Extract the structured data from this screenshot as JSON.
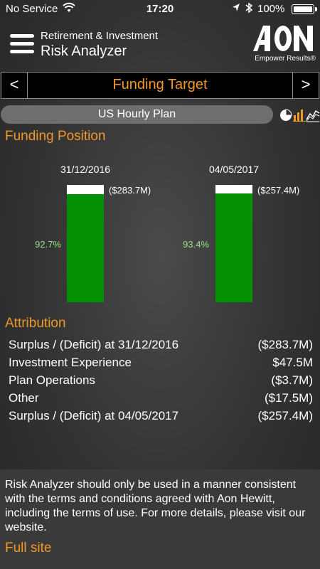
{
  "status_bar": {
    "carrier": "No Service",
    "time": "17:20",
    "battery": "100%"
  },
  "header": {
    "subtitle": "Retirement & Investment",
    "title": "Risk Analyzer",
    "logo_text": "AON",
    "logo_tagline": "Empower Results®"
  },
  "nav": {
    "prev": "<",
    "title": "Funding Target",
    "next": ">"
  },
  "plan": {
    "name": "US Hourly Plan",
    "view_icons": [
      "pie-chart-icon",
      "bar-chart-icon",
      "line-chart-icon"
    ]
  },
  "funding_position": {
    "title": "Funding Position",
    "bars": [
      {
        "date": "31/12/2016",
        "deficit_label": "($283.7M)",
        "funded_pct_label": "92.7%",
        "funded_pct": 92.7
      },
      {
        "date": "04/05/2017",
        "deficit_label": "($257.4M)",
        "funded_pct_label": "93.4%",
        "funded_pct": 93.4
      }
    ]
  },
  "attribution": {
    "title": "Attribution",
    "rows": [
      {
        "label": "Surplus / (Deficit) at 31/12/2016",
        "value": "($283.7M)"
      },
      {
        "label": "Investment Experience",
        "value": "$47.5M"
      },
      {
        "label": "Plan Operations",
        "value": "($3.7M)"
      },
      {
        "label": "Other",
        "value": "($17.5M)"
      },
      {
        "label": "Surplus / (Deficit) at 04/05/2017",
        "value": "($257.4M)"
      }
    ]
  },
  "disclaimer": {
    "text": "Risk Analyzer should only be used in a manner consistent with the terms and conditions agreed with Aon Hewitt, including the terms of use. For more details, please visit our website.",
    "link": "Full site"
  },
  "colors": {
    "accent": "#f0982a",
    "funded": "#039103",
    "deficit": "#ffffff",
    "pct_text": "#9be08c"
  }
}
